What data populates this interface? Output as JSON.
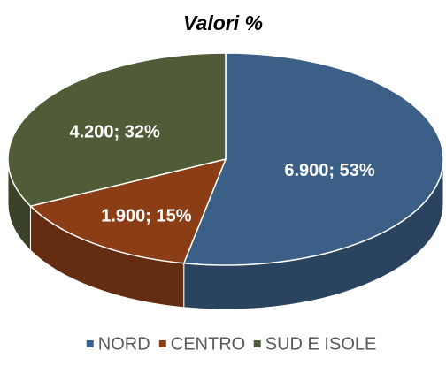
{
  "chart_data": {
    "type": "pie3d",
    "title": "Valori %",
    "categories": [
      "NORD",
      "CENTRO",
      "SUD E ISOLE"
    ],
    "values": [
      6900,
      1900,
      4200
    ],
    "value_labels": [
      "6.900; 53%",
      "1.900; 15%",
      "4.200; 32%"
    ],
    "colors": [
      "#3b5f86",
      "#8b3d16",
      "#505b38"
    ]
  }
}
